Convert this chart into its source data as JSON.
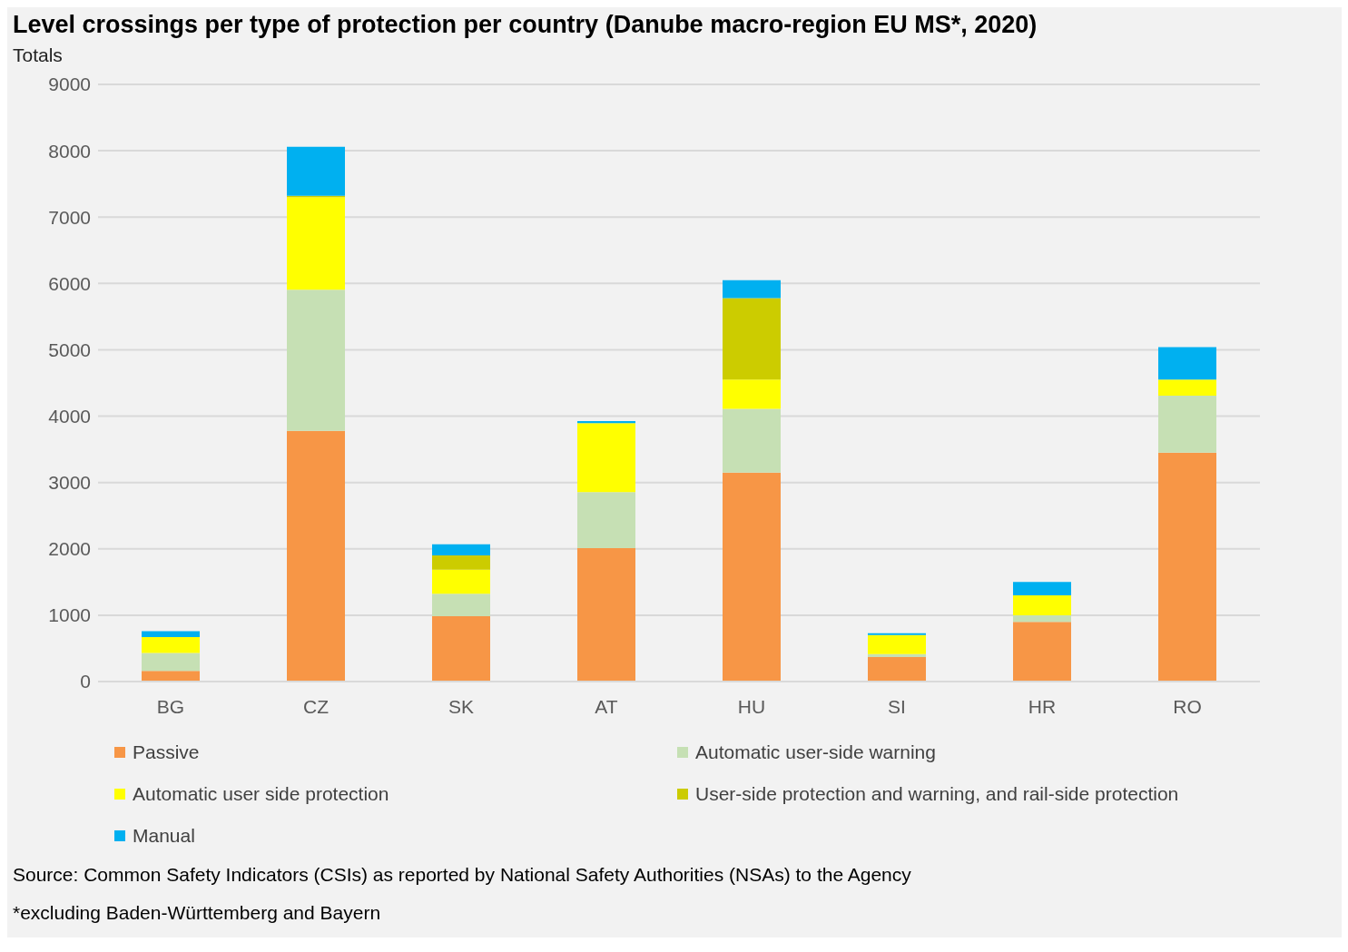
{
  "chart_data": {
    "type": "bar",
    "title": "Level crossings per type of protection per country (Danube macro-region EU MS*, 2020)",
    "ylabel": "Totals",
    "categories": [
      "BG",
      "CZ",
      "SK",
      "AT",
      "HU",
      "SI",
      "HR",
      "RO"
    ],
    "series": [
      {
        "name": "Passive",
        "color": "#f79646",
        "values": [
          160,
          3780,
          985,
          2010,
          3150,
          370,
          900,
          3450
        ]
      },
      {
        "name": "Automatic user-side warning",
        "color": "#c6e0b4",
        "values": [
          270,
          2125,
          340,
          845,
          960,
          45,
          100,
          860
        ]
      },
      {
        "name": "Automatic user side protection",
        "color": "#ffff00",
        "values": [
          240,
          1395,
          360,
          1040,
          440,
          285,
          300,
          240
        ]
      },
      {
        "name": "User-side protection and warning, and rail-side protection",
        "color": "#cccc00",
        "values": [
          0,
          20,
          215,
          0,
          1230,
          0,
          0,
          0
        ]
      },
      {
        "name": "Manual",
        "color": "#00b0f0",
        "values": [
          90,
          740,
          170,
          30,
          270,
          30,
          200,
          490
        ]
      }
    ],
    "stacked": true,
    "ylim": [
      0,
      9000
    ],
    "yticks": [
      0,
      1000,
      2000,
      3000,
      4000,
      5000,
      6000,
      7000,
      8000,
      9000
    ],
    "grid": "y",
    "legend": "bottom",
    "annotations": [
      "Source: Common Safety Indicators (CSIs) as reported by National Safety Authorities (NSAs) to the Agency",
      "*excluding Baden-Württemberg and Bayern"
    ]
  }
}
